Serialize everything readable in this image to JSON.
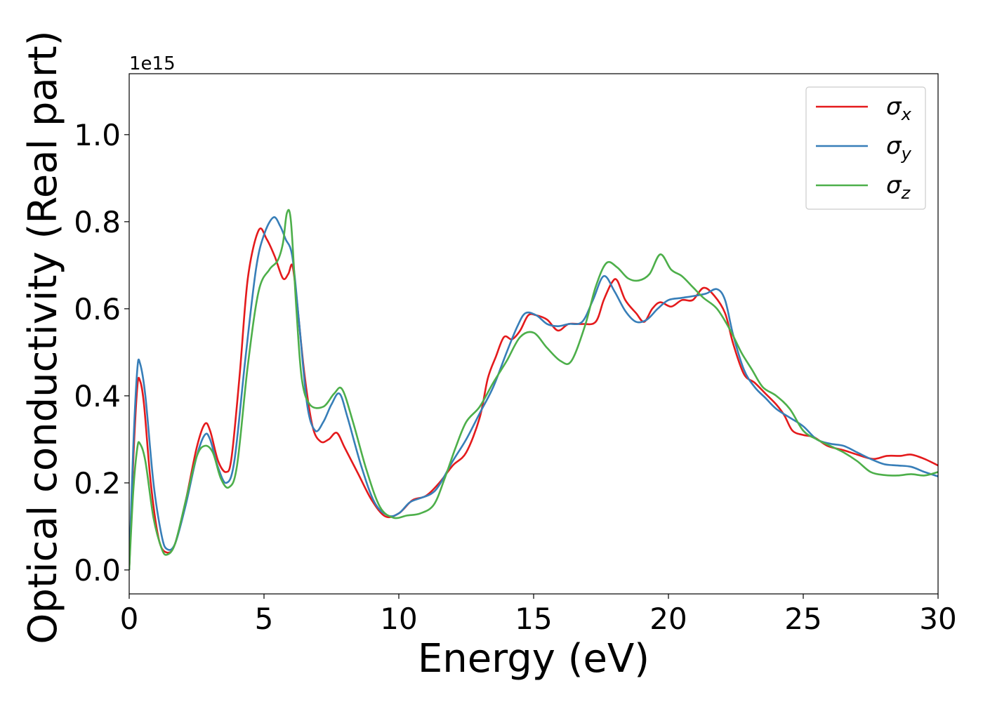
{
  "chart_data": {
    "type": "line",
    "title": "",
    "xlabel": "Energy (eV)",
    "ylabel": "Optical conductivity (Real part)",
    "y_offset_label": "1e15",
    "xlim": [
      0,
      30
    ],
    "ylim": [
      -0.055,
      1.14
    ],
    "xticks": [
      0,
      5,
      10,
      15,
      20,
      25,
      30
    ],
    "xtick_labels": [
      "0",
      "5",
      "10",
      "15",
      "20",
      "25",
      "30"
    ],
    "yticks": [
      0.0,
      0.2,
      0.4,
      0.6,
      0.8,
      1.0
    ],
    "ytick_labels": [
      "0.0",
      "0.2",
      "0.4",
      "0.6",
      "0.8",
      "1.0"
    ],
    "grid": false,
    "legend_position": "top-right",
    "series": [
      {
        "name": "σx",
        "legend_symbol": "σ",
        "legend_subscript": "x",
        "color": "#e41a1c",
        "points": [
          [
            0,
            0.0
          ],
          [
            0.15,
            0.25
          ],
          [
            0.3,
            0.42
          ],
          [
            0.4,
            0.435
          ],
          [
            0.55,
            0.38
          ],
          [
            0.8,
            0.2
          ],
          [
            1.1,
            0.07
          ],
          [
            1.4,
            0.04
          ],
          [
            1.7,
            0.06
          ],
          [
            2.1,
            0.16
          ],
          [
            2.5,
            0.28
          ],
          [
            2.8,
            0.335
          ],
          [
            3.0,
            0.32
          ],
          [
            3.3,
            0.25
          ],
          [
            3.6,
            0.225
          ],
          [
            3.8,
            0.26
          ],
          [
            4.1,
            0.45
          ],
          [
            4.4,
            0.67
          ],
          [
            4.8,
            0.78
          ],
          [
            5.1,
            0.76
          ],
          [
            5.4,
            0.72
          ],
          [
            5.7,
            0.67
          ],
          [
            5.9,
            0.68
          ],
          [
            6.05,
            0.7
          ],
          [
            6.2,
            0.63
          ],
          [
            6.5,
            0.45
          ],
          [
            6.8,
            0.33
          ],
          [
            7.1,
            0.295
          ],
          [
            7.4,
            0.3
          ],
          [
            7.7,
            0.315
          ],
          [
            8.0,
            0.28
          ],
          [
            8.5,
            0.22
          ],
          [
            9.0,
            0.16
          ],
          [
            9.5,
            0.123
          ],
          [
            10.0,
            0.13
          ],
          [
            10.5,
            0.16
          ],
          [
            11.0,
            0.17
          ],
          [
            11.5,
            0.2
          ],
          [
            12.0,
            0.24
          ],
          [
            12.5,
            0.27
          ],
          [
            13.0,
            0.35
          ],
          [
            13.3,
            0.44
          ],
          [
            13.6,
            0.49
          ],
          [
            13.9,
            0.535
          ],
          [
            14.2,
            0.53
          ],
          [
            14.5,
            0.55
          ],
          [
            14.8,
            0.585
          ],
          [
            15.1,
            0.585
          ],
          [
            15.5,
            0.575
          ],
          [
            15.9,
            0.55
          ],
          [
            16.3,
            0.565
          ],
          [
            16.8,
            0.565
          ],
          [
            17.3,
            0.57
          ],
          [
            17.6,
            0.62
          ],
          [
            17.9,
            0.66
          ],
          [
            18.1,
            0.665
          ],
          [
            18.4,
            0.62
          ],
          [
            18.8,
            0.59
          ],
          [
            19.1,
            0.57
          ],
          [
            19.4,
            0.6
          ],
          [
            19.7,
            0.615
          ],
          [
            20.1,
            0.605
          ],
          [
            20.5,
            0.62
          ],
          [
            20.9,
            0.62
          ],
          [
            21.3,
            0.648
          ],
          [
            21.7,
            0.63
          ],
          [
            22.1,
            0.59
          ],
          [
            22.4,
            0.52
          ],
          [
            22.8,
            0.45
          ],
          [
            23.2,
            0.43
          ],
          [
            23.6,
            0.405
          ],
          [
            24.0,
            0.38
          ],
          [
            24.3,
            0.355
          ],
          [
            24.6,
            0.32
          ],
          [
            25.0,
            0.31
          ],
          [
            25.4,
            0.305
          ],
          [
            25.9,
            0.285
          ],
          [
            26.5,
            0.275
          ],
          [
            27.0,
            0.265
          ],
          [
            27.6,
            0.255
          ],
          [
            28.1,
            0.262
          ],
          [
            28.6,
            0.262
          ],
          [
            29.0,
            0.265
          ],
          [
            29.5,
            0.255
          ],
          [
            30.0,
            0.24
          ]
        ]
      },
      {
        "name": "σy",
        "legend_symbol": "σ",
        "legend_subscript": "y",
        "color": "#377eb8",
        "points": [
          [
            0,
            0.0
          ],
          [
            0.15,
            0.28
          ],
          [
            0.3,
            0.46
          ],
          [
            0.4,
            0.475
          ],
          [
            0.6,
            0.4
          ],
          [
            0.9,
            0.2
          ],
          [
            1.2,
            0.08
          ],
          [
            1.4,
            0.048
          ],
          [
            1.7,
            0.06
          ],
          [
            2.1,
            0.15
          ],
          [
            2.5,
            0.26
          ],
          [
            2.8,
            0.31
          ],
          [
            3.0,
            0.3
          ],
          [
            3.3,
            0.235
          ],
          [
            3.6,
            0.2
          ],
          [
            3.9,
            0.25
          ],
          [
            4.3,
            0.48
          ],
          [
            4.7,
            0.69
          ],
          [
            5.0,
            0.77
          ],
          [
            5.35,
            0.81
          ],
          [
            5.6,
            0.79
          ],
          [
            5.8,
            0.76
          ],
          [
            6.05,
            0.72
          ],
          [
            6.3,
            0.57
          ],
          [
            6.6,
            0.38
          ],
          [
            6.9,
            0.32
          ],
          [
            7.2,
            0.34
          ],
          [
            7.5,
            0.38
          ],
          [
            7.8,
            0.405
          ],
          [
            8.1,
            0.35
          ],
          [
            8.6,
            0.24
          ],
          [
            9.1,
            0.155
          ],
          [
            9.6,
            0.125
          ],
          [
            10.0,
            0.13
          ],
          [
            10.4,
            0.155
          ],
          [
            10.8,
            0.165
          ],
          [
            11.2,
            0.175
          ],
          [
            11.5,
            0.195
          ],
          [
            12.0,
            0.25
          ],
          [
            12.5,
            0.3
          ],
          [
            13.0,
            0.36
          ],
          [
            13.5,
            0.42
          ],
          [
            14.0,
            0.5
          ],
          [
            14.4,
            0.56
          ],
          [
            14.7,
            0.59
          ],
          [
            15.1,
            0.585
          ],
          [
            15.5,
            0.565
          ],
          [
            15.9,
            0.56
          ],
          [
            16.3,
            0.565
          ],
          [
            16.8,
            0.57
          ],
          [
            17.2,
            0.62
          ],
          [
            17.6,
            0.675
          ],
          [
            18.0,
            0.64
          ],
          [
            18.4,
            0.595
          ],
          [
            18.8,
            0.57
          ],
          [
            19.2,
            0.575
          ],
          [
            19.6,
            0.6
          ],
          [
            20.0,
            0.62
          ],
          [
            20.5,
            0.625
          ],
          [
            21.0,
            0.63
          ],
          [
            21.4,
            0.635
          ],
          [
            21.8,
            0.645
          ],
          [
            22.1,
            0.62
          ],
          [
            22.4,
            0.54
          ],
          [
            22.8,
            0.46
          ],
          [
            23.2,
            0.42
          ],
          [
            23.6,
            0.395
          ],
          [
            24.0,
            0.37
          ],
          [
            24.5,
            0.35
          ],
          [
            25.0,
            0.33
          ],
          [
            25.5,
            0.3
          ],
          [
            26.0,
            0.29
          ],
          [
            26.5,
            0.285
          ],
          [
            27.0,
            0.27
          ],
          [
            27.5,
            0.255
          ],
          [
            28.0,
            0.243
          ],
          [
            28.5,
            0.24
          ],
          [
            29.0,
            0.237
          ],
          [
            29.5,
            0.225
          ],
          [
            30.0,
            0.215
          ]
        ]
      },
      {
        "name": "σz",
        "legend_symbol": "σ",
        "legend_subscript": "z",
        "color": "#4daf4a",
        "points": [
          [
            0,
            0.0
          ],
          [
            0.15,
            0.18
          ],
          [
            0.3,
            0.28
          ],
          [
            0.4,
            0.29
          ],
          [
            0.6,
            0.25
          ],
          [
            0.9,
            0.12
          ],
          [
            1.2,
            0.05
          ],
          [
            1.4,
            0.035
          ],
          [
            1.7,
            0.06
          ],
          [
            2.1,
            0.16
          ],
          [
            2.5,
            0.26
          ],
          [
            2.8,
            0.285
          ],
          [
            3.1,
            0.27
          ],
          [
            3.4,
            0.21
          ],
          [
            3.7,
            0.19
          ],
          [
            4.0,
            0.24
          ],
          [
            4.4,
            0.47
          ],
          [
            4.8,
            0.64
          ],
          [
            5.2,
            0.69
          ],
          [
            5.5,
            0.71
          ],
          [
            5.7,
            0.75
          ],
          [
            5.85,
            0.82
          ],
          [
            6.0,
            0.8
          ],
          [
            6.2,
            0.6
          ],
          [
            6.4,
            0.44
          ],
          [
            6.7,
            0.38
          ],
          [
            7.2,
            0.375
          ],
          [
            7.6,
            0.405
          ],
          [
            7.9,
            0.415
          ],
          [
            8.3,
            0.34
          ],
          [
            8.8,
            0.23
          ],
          [
            9.3,
            0.145
          ],
          [
            9.8,
            0.12
          ],
          [
            10.3,
            0.125
          ],
          [
            10.8,
            0.13
          ],
          [
            11.3,
            0.15
          ],
          [
            11.7,
            0.21
          ],
          [
            12.1,
            0.28
          ],
          [
            12.5,
            0.34
          ],
          [
            13.0,
            0.375
          ],
          [
            13.5,
            0.43
          ],
          [
            14.0,
            0.48
          ],
          [
            14.5,
            0.535
          ],
          [
            15.0,
            0.545
          ],
          [
            15.5,
            0.51
          ],
          [
            16.0,
            0.48
          ],
          [
            16.4,
            0.48
          ],
          [
            16.9,
            0.56
          ],
          [
            17.3,
            0.65
          ],
          [
            17.7,
            0.705
          ],
          [
            18.1,
            0.695
          ],
          [
            18.5,
            0.67
          ],
          [
            18.9,
            0.665
          ],
          [
            19.3,
            0.68
          ],
          [
            19.7,
            0.725
          ],
          [
            20.1,
            0.69
          ],
          [
            20.5,
            0.675
          ],
          [
            20.9,
            0.65
          ],
          [
            21.3,
            0.625
          ],
          [
            21.8,
            0.6
          ],
          [
            22.3,
            0.55
          ],
          [
            22.7,
            0.5
          ],
          [
            23.1,
            0.46
          ],
          [
            23.5,
            0.42
          ],
          [
            24.0,
            0.4
          ],
          [
            24.5,
            0.37
          ],
          [
            25.0,
            0.32
          ],
          [
            25.5,
            0.3
          ],
          [
            26.0,
            0.285
          ],
          [
            26.5,
            0.27
          ],
          [
            27.0,
            0.25
          ],
          [
            27.5,
            0.225
          ],
          [
            28.0,
            0.218
          ],
          [
            28.5,
            0.217
          ],
          [
            29.0,
            0.22
          ],
          [
            29.5,
            0.217
          ],
          [
            30.0,
            0.225
          ]
        ]
      }
    ]
  }
}
